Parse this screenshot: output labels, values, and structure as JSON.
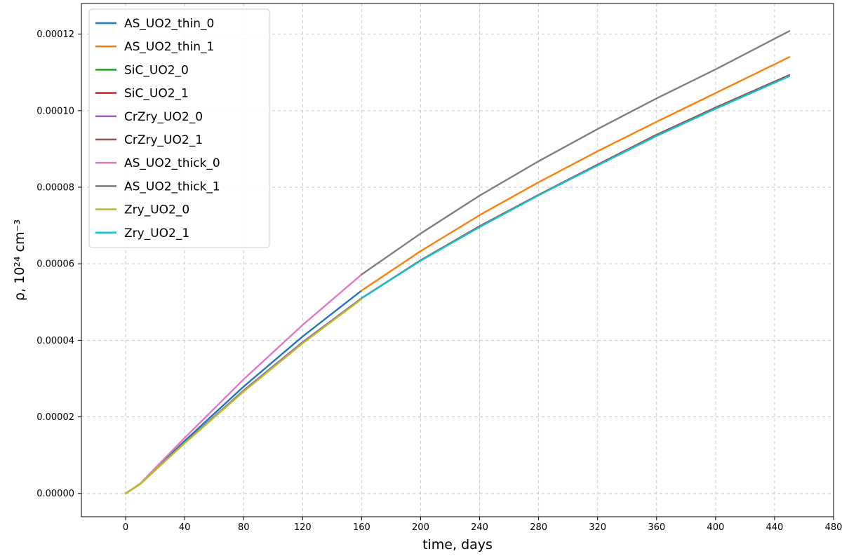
{
  "chart_data": {
    "type": "line",
    "title": "",
    "xlabel": "time, days",
    "ylabel": "ρ, 10²⁴ cm⁻³",
    "xlim": [
      -30,
      480
    ],
    "ylim": [
      -6.1e-06,
      0.000128
    ],
    "xticks": [
      0,
      40,
      80,
      120,
      160,
      200,
      240,
      280,
      320,
      360,
      400,
      440,
      480
    ],
    "xtick_labels": [
      "0",
      "40",
      "80",
      "120",
      "160",
      "200",
      "240",
      "280",
      "320",
      "360",
      "400",
      "440",
      "480"
    ],
    "yticks": [
      0,
      2e-05,
      4e-05,
      6e-05,
      8e-05,
      0.0001,
      0.00012
    ],
    "ytick_labels": [
      "0.00000",
      "0.00002",
      "0.00004",
      "0.00006",
      "0.00008",
      "0.00010",
      "0.00012"
    ],
    "grid": true,
    "legend_position": "top-left",
    "series": [
      {
        "name": "AS_UO2_thin_0",
        "color": "#1f77b4",
        "x": [
          0,
          10,
          40,
          80,
          120,
          160
        ],
        "y": [
          0,
          2.5e-06,
          1.37e-05,
          2.79e-05,
          4.1e-05,
          5.3e-05
        ]
      },
      {
        "name": "AS_UO2_thin_1",
        "color": "#ff7f0e",
        "x": [
          160,
          200,
          240,
          280,
          320,
          360,
          400,
          450
        ],
        "y": [
          5.3e-05,
          6.33e-05,
          7.27e-05,
          8.13e-05,
          8.94e-05,
          9.71e-05,
          0.0001046,
          0.000114
        ]
      },
      {
        "name": "SiC_UO2_0",
        "color": "#2ca02c",
        "x": [
          0,
          10,
          40,
          80,
          120,
          160
        ],
        "y": [
          0,
          2.5e-06,
          1.32e-05,
          2.69e-05,
          3.95e-05,
          5.1e-05
        ]
      },
      {
        "name": "SiC_UO2_1",
        "color": "#d62728",
        "x": [
          160,
          200,
          240,
          280,
          320,
          360,
          400,
          450
        ],
        "y": [
          5.1e-05,
          6.09e-05,
          6.98e-05,
          7.8e-05,
          8.59e-05,
          9.37e-05,
          0.0001008,
          0.0001093
        ]
      },
      {
        "name": "CrZry_UO2_0",
        "color": "#9467bd",
        "x": [
          0,
          10,
          40,
          80,
          120,
          160
        ],
        "y": [
          0,
          2.5e-06,
          1.32e-05,
          2.69e-05,
          3.95e-05,
          5.1e-05
        ]
      },
      {
        "name": "CrZry_UO2_1",
        "color": "#8c564b",
        "x": [
          160,
          200,
          240,
          280,
          320,
          360,
          400,
          450
        ],
        "y": [
          5.1e-05,
          6.09e-05,
          6.98e-05,
          7.8e-05,
          8.59e-05,
          9.37e-05,
          0.0001008,
          0.0001093
        ]
      },
      {
        "name": "AS_UO2_thick_0",
        "color": "#e377c2",
        "x": [
          0,
          10,
          40,
          80,
          120,
          160
        ],
        "y": [
          0,
          2.6e-06,
          1.45e-05,
          2.98e-05,
          4.4e-05,
          5.72e-05
        ]
      },
      {
        "name": "AS_UO2_thick_1",
        "color": "#7f7f7f",
        "x": [
          160,
          200,
          240,
          280,
          320,
          360,
          400,
          450
        ],
        "y": [
          5.72e-05,
          6.79e-05,
          7.78e-05,
          8.68e-05,
          9.52e-05,
          0.0001032,
          0.0001108,
          0.0001208
        ]
      },
      {
        "name": "Zry_UO2_0",
        "color": "#bcbd22",
        "x": [
          0,
          10,
          40,
          80,
          120,
          160
        ],
        "y": [
          0,
          2.5e-06,
          1.31e-05,
          2.66e-05,
          3.92e-05,
          5.08e-05
        ]
      },
      {
        "name": "Zry_UO2_1",
        "color": "#17becf",
        "x": [
          160,
          200,
          240,
          280,
          320,
          360,
          400,
          450
        ],
        "y": [
          5.1e-05,
          6.08e-05,
          6.96e-05,
          7.79e-05,
          8.57e-05,
          9.34e-05,
          0.0001005,
          0.000109
        ]
      }
    ]
  }
}
